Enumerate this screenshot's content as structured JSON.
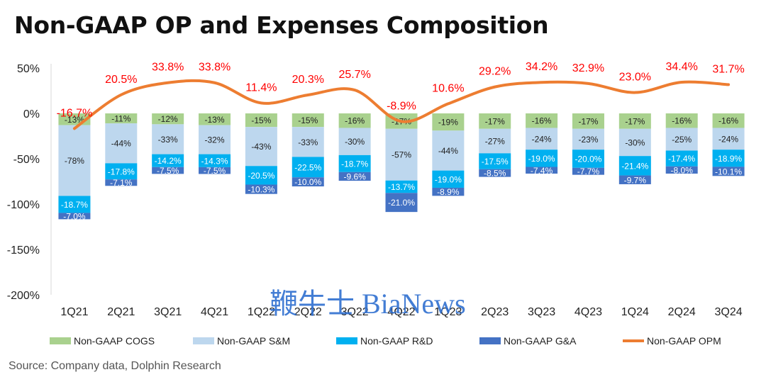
{
  "title": "Non-GAAP OP and Expenses Composition",
  "source": "Source: Company data, Dolphin Research",
  "brand": "鞭牛士 BiaNews",
  "chart_data": {
    "type": "bar",
    "stacked": true,
    "categories": [
      "1Q21",
      "2Q21",
      "3Q21",
      "4Q21",
      "1Q22",
      "2Q22",
      "3Q22",
      "4Q22",
      "1Q23",
      "2Q23",
      "3Q23",
      "4Q23",
      "1Q24",
      "2Q24",
      "3Q24"
    ],
    "ylim": [
      -200,
      50
    ],
    "yticks": [
      50,
      0,
      -50,
      -100,
      -150,
      -200
    ],
    "ytick_labels": [
      "50%",
      "0%",
      "-50%",
      "-100%",
      "-150%",
      "-200%"
    ],
    "legend_position": "bottom",
    "series": [
      {
        "name": "Non-GAAP COGS",
        "color": "#a9d18e",
        "values": [
          -13,
          -11,
          -12,
          -13,
          -15,
          -15,
          -16,
          -17,
          -19,
          -17,
          -16,
          -17,
          -17,
          -16,
          -16
        ],
        "labels": [
          "-13%",
          "-11%",
          "-12%",
          "-13%",
          "-15%",
          "-15%",
          "-16%",
          "-17%",
          "-19%",
          "-17%",
          "-16%",
          "-17%",
          "-17%",
          "-16%",
          "-16%"
        ]
      },
      {
        "name": "Non-GAAP S&M",
        "color": "#bdd7ee",
        "values": [
          -78,
          -44,
          -33,
          -32,
          -43,
          -33,
          -30,
          -57,
          -44,
          -27,
          -24,
          -23,
          -30,
          -25,
          -24
        ],
        "labels": [
          "-78%",
          "-44%",
          "-33%",
          "-32%",
          "-43%",
          "-33%",
          "-30%",
          "-57%",
          "-44%",
          "-27%",
          "-24%",
          "-23%",
          "-30%",
          "-25%",
          "-24%"
        ]
      },
      {
        "name": "Non-GAAP R&D",
        "color": "#00b0f0",
        "values": [
          -18.7,
          -17.8,
          -14.2,
          -14.3,
          -20.5,
          -22.5,
          -18.7,
          -13.7,
          -19.0,
          -17.5,
          -19.0,
          -20.0,
          -21.4,
          -17.4,
          -18.9
        ],
        "labels": [
          "-18.7%",
          "-17.8%",
          "-14.2%",
          "-14.3%",
          "-20.5%",
          "-22.5%",
          "-18.7%",
          "-13.7%",
          "-19.0%",
          "-17.5%",
          "-19.0%",
          "-20.0%",
          "-21.4%",
          "-17.4%",
          "-18.9%"
        ]
      },
      {
        "name": "Non-GAAP G&A",
        "color": "#4472c4",
        "values": [
          -7.0,
          -7.1,
          -7.5,
          -7.5,
          -10.3,
          -10.0,
          -9.6,
          -21.0,
          -8.9,
          -8.5,
          -7.4,
          -7.7,
          -9.7,
          -8.0,
          -10.1
        ],
        "labels": [
          "-7.0%",
          "-7.1%",
          "-7.5%",
          "-7.5%",
          "-10.3%",
          "-10.0%",
          "-9.6%",
          "-21.0%",
          "-8.9%",
          "-8.5%",
          "-7.4%",
          "-7.7%",
          "-9.7%",
          "-8.0%",
          "-10.1%"
        ]
      }
    ],
    "line_series": {
      "name": "Non-GAAP OPM",
      "color": "#ed7d31",
      "label_color": "#ff0000",
      "values": [
        -16.7,
        20.5,
        33.8,
        33.8,
        11.4,
        20.3,
        25.7,
        -8.9,
        10.6,
        29.2,
        34.2,
        32.9,
        23.0,
        34.4,
        31.7
      ],
      "labels": [
        "-16.7%",
        "20.5%",
        "33.8%",
        "33.8%",
        "11.4%",
        "20.3%",
        "25.7%",
        "-8.9%",
        "10.6%",
        "29.2%",
        "34.2%",
        "32.9%",
        "23.0%",
        "34.4%",
        "31.7%"
      ]
    }
  }
}
